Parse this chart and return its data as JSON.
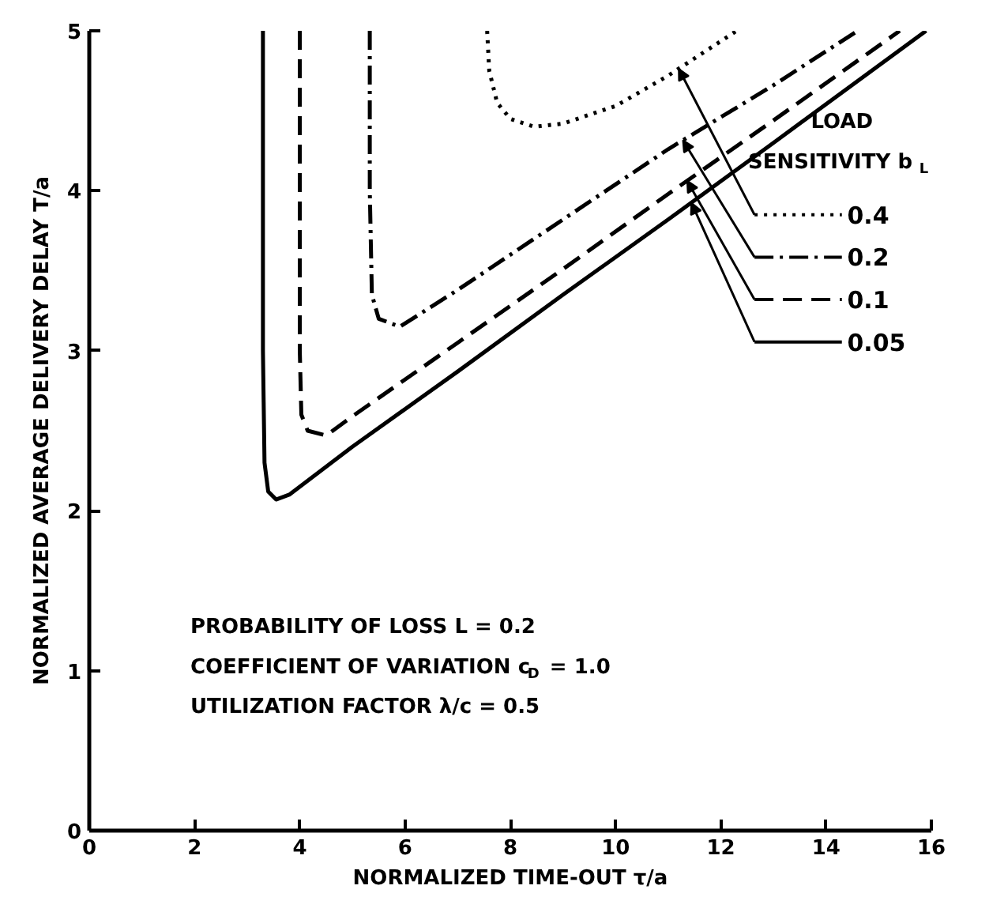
{
  "chart_data": {
    "type": "line",
    "xlabel": "NORMALIZED TIME-OUT τ/a",
    "ylabel": "NORMALIZED AVERAGE DELIVERY DELAY T/a",
    "legend_title": "LOAD SENSITIVITY b$_{L}$",
    "annotations": [
      "PROBABILITY OF LOSS L = 0.2",
      "COEFFICIENT OF VARIATION c$_{D}$ = 1.0",
      "UTILIZATION FACTOR λ/c = 0.5"
    ],
    "series": [
      {
        "name": "0.4",
        "color": "#000000",
        "line_style": "dotted",
        "x": [
          7.56,
          7.6,
          7.75,
          8.0,
          8.45,
          9,
          10,
          11,
          12.3
        ],
        "values": [
          5,
          4.75,
          4.55,
          4.45,
          4.4,
          4.42,
          4.53,
          4.72,
          5.0
        ]
      },
      {
        "name": "0.2",
        "color": "#000000",
        "line_style": "dashdot",
        "x": [
          5.33,
          5.33,
          5.37,
          5.5,
          5.9,
          7,
          9,
          11,
          13,
          14.6
        ],
        "values": [
          5,
          4,
          3.35,
          3.2,
          3.15,
          3.38,
          3.82,
          4.26,
          4.66,
          5.0
        ]
      },
      {
        "name": "0.1",
        "color": "#000000",
        "line_style": "dashed",
        "x": [
          4.0,
          4.0,
          4.03,
          4.15,
          4.5,
          5,
          7,
          9,
          11,
          13,
          15.4
        ],
        "values": [
          5,
          3,
          2.6,
          2.5,
          2.47,
          2.59,
          3.05,
          3.51,
          3.98,
          4.44,
          5.0
        ]
      },
      {
        "name": "0.05",
        "color": "#000000",
        "line_style": "solid",
        "x": [
          3.3,
          3.3,
          3.33,
          3.4,
          3.55,
          3.8,
          5,
          7,
          9,
          11,
          13,
          15.9
        ],
        "values": [
          5,
          3,
          2.3,
          2.12,
          2.07,
          2.1,
          2.4,
          2.87,
          3.35,
          3.82,
          4.3,
          5.0
        ]
      }
    ],
    "xlim": [
      0,
      16
    ],
    "ylim": [
      0,
      5
    ],
    "xticks": [
      0,
      2,
      4,
      6,
      8,
      10,
      12,
      14,
      16
    ],
    "yticks": [
      0,
      1,
      2,
      3,
      4,
      5
    ],
    "grid": false,
    "legend": "right",
    "marker": "none"
  }
}
